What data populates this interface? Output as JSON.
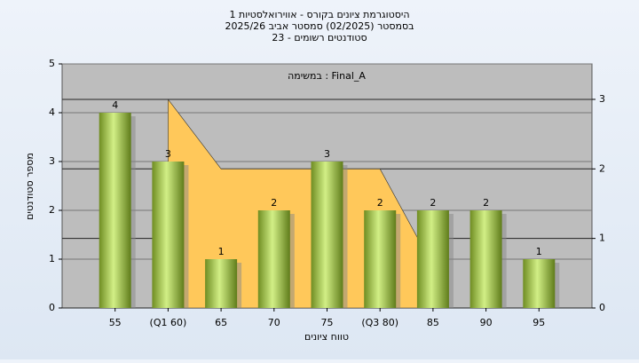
{
  "chart_data": {
    "type": "bar",
    "title": [
      "היסטוגרמת ציונים בקורס - אווירואלסטיות 1",
      "בסמסטר  (02/2025)  סמסטר אביב 2025/26",
      "סטודנטים רשומים - 23"
    ],
    "annotation": "Final_A : במשימה",
    "xlabel": "טווח ציונים",
    "ylabel": "מספר סטודנטים",
    "categories": [
      "55",
      "(Q1 60)",
      "65",
      "70",
      "75",
      "(Q3 80)",
      "85",
      "90",
      "95"
    ],
    "series": [
      {
        "type": "bar",
        "color": "#9cc24a",
        "values": [
          4,
          3,
          1,
          2,
          3,
          2,
          2,
          2,
          1
        ]
      },
      {
        "type": "area",
        "axis": "y2",
        "color": "#ffc85a",
        "values": [
          null,
          3,
          2,
          2,
          2,
          2,
          0.6,
          null,
          null
        ]
      }
    ],
    "ylim": [
      0,
      5
    ],
    "yticks": [
      0,
      1,
      2,
      3,
      4,
      5
    ],
    "y2lim": [
      0,
      3.51
    ],
    "y2ticks": [
      0,
      1,
      2,
      3
    ],
    "grid": true
  }
}
